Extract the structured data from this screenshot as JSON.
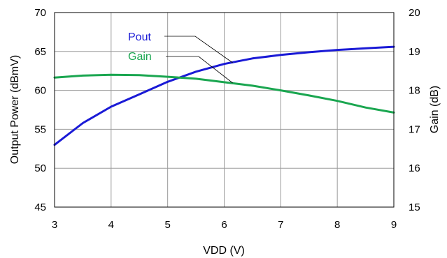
{
  "chart_data": {
    "type": "line",
    "xlabel": "VDD (V)",
    "ylabel_left": "Output Power (dBmV)",
    "ylabel_right": "Gain (dB)",
    "xlim": [
      3,
      9
    ],
    "ylim_left": [
      45,
      70
    ],
    "ylim_right": [
      15,
      20
    ],
    "x_ticks": [
      "3",
      "4",
      "5",
      "6",
      "7",
      "8",
      "9"
    ],
    "y_left_ticks": [
      "45",
      "50",
      "55",
      "60",
      "65",
      "70"
    ],
    "y_right_ticks": [
      "15",
      "16",
      "17",
      "18",
      "19",
      "20"
    ],
    "grid": true,
    "series": [
      {
        "name": "Pout",
        "axis": "left",
        "color": "#1a1ad6",
        "x": [
          3,
          3.5,
          4,
          4.5,
          5,
          5.5,
          6,
          6.5,
          7,
          7.5,
          8,
          8.5,
          9
        ],
        "y": [
          53.0,
          55.8,
          57.9,
          59.5,
          61.1,
          62.4,
          63.4,
          64.1,
          64.55,
          64.9,
          65.2,
          65.4,
          65.6
        ]
      },
      {
        "name": "Gain",
        "axis": "right",
        "color": "#1aa650",
        "x": [
          3,
          3.5,
          4,
          4.5,
          5,
          5.5,
          6,
          6.5,
          7,
          7.5,
          8,
          8.5,
          9
        ],
        "y": [
          18.33,
          18.38,
          18.4,
          18.39,
          18.35,
          18.3,
          18.21,
          18.12,
          18.0,
          17.87,
          17.73,
          17.56,
          17.43
        ]
      }
    ]
  }
}
